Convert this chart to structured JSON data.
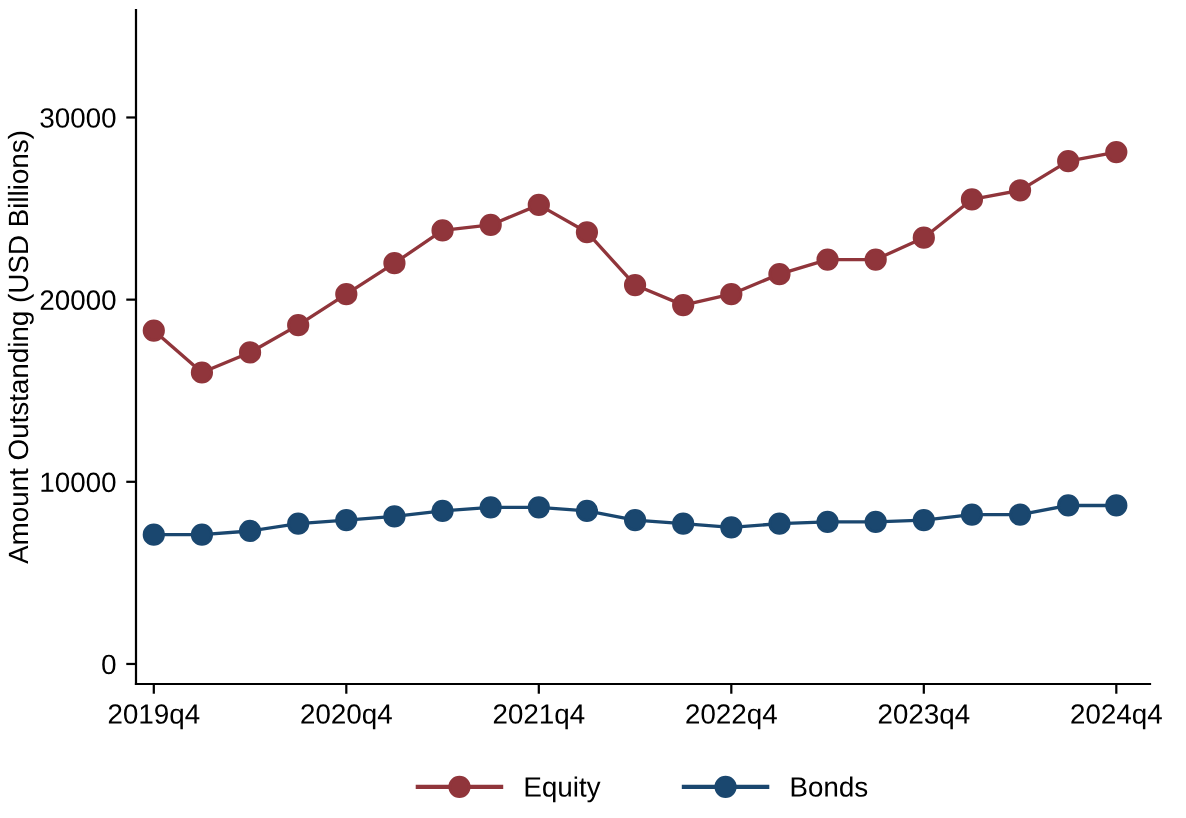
{
  "chart_data": {
    "type": "line",
    "ylabel": "Amount Outstanding (USD Billions)",
    "categories": [
      "2019q4",
      null,
      null,
      null,
      "2020q4",
      null,
      null,
      null,
      "2021q4",
      null,
      null,
      null,
      "2022q4",
      null,
      null,
      null,
      "2023q4",
      null,
      null,
      null,
      "2024q4"
    ],
    "series": [
      {
        "name": "Equity",
        "color": "#90353b",
        "values": [
          18300,
          16000,
          17100,
          18600,
          20300,
          22000,
          23800,
          24100,
          25200,
          23700,
          20800,
          19700,
          20300,
          21400,
          22200,
          22200,
          23400,
          25500,
          26000,
          27600,
          28100
        ]
      },
      {
        "name": "Bonds",
        "color": "#1a476f",
        "values": [
          7100,
          7100,
          7300,
          7700,
          7900,
          8100,
          8400,
          8600,
          8600,
          8400,
          7900,
          7700,
          7500,
          7700,
          7800,
          7800,
          7900,
          8200,
          8200,
          8700,
          8700
        ]
      }
    ],
    "ylim": [
      -1100,
      35900
    ],
    "yticks": [
      0,
      10000,
      20000,
      30000
    ],
    "grid": false,
    "legend": "bottom",
    "marker": "circle",
    "line_style": "solid"
  }
}
